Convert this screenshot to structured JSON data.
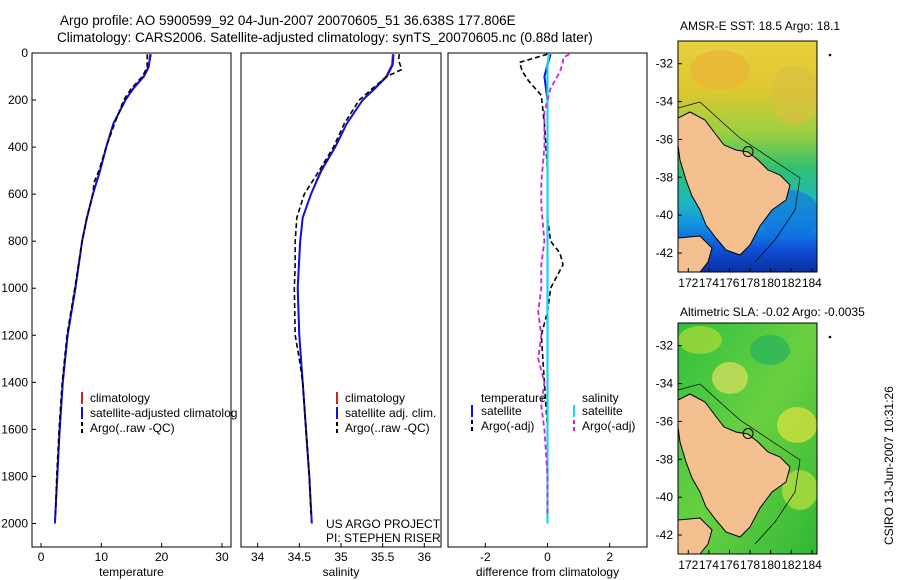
{
  "header": {
    "line1": "Argo profile: AO 5900599_92 04-Jun-2007 20070605_51 36.638S 177.806E",
    "line2": "Climatology: CARS2006. Satellite-adjusted climatology: synTS_20070605.nc (0.88d later)"
  },
  "colors": {
    "climatology": "#d42020",
    "satellite": "#1010e0",
    "argo": "#000000",
    "sat_salinity": "#20d0f0",
    "argo_salinity_adj": "#d020d0"
  },
  "chart_data": [
    {
      "type": "line",
      "name": "temperature-profile",
      "xlabel": "temperature",
      "ylabel": "",
      "xlim": [
        -1.5,
        31.5
      ],
      "ylim": [
        2100,
        0
      ],
      "y_inverted": true,
      "xticks": [
        0,
        10,
        20,
        30
      ],
      "yticks": [
        0,
        200,
        400,
        600,
        800,
        1000,
        1200,
        1400,
        1600,
        1800,
        2000
      ],
      "legend_entries": [
        "climatology",
        "satellite-adjusted climatolog",
        "Argo(..raw -QC)"
      ],
      "series": [
        {
          "name": "climatology",
          "depth": [
            5,
            60,
            100,
            150,
            200,
            300,
            400,
            500,
            600,
            700,
            800,
            1000,
            1200,
            1400,
            1600,
            1800,
            2000
          ],
          "values": [
            18.0,
            17.9,
            17.1,
            15.4,
            14.0,
            12.0,
            10.8,
            9.8,
            8.6,
            7.6,
            6.8,
            5.7,
            4.4,
            3.6,
            3.1,
            2.7,
            2.3
          ]
        },
        {
          "name": "satellite-adjusted",
          "depth": [
            5,
            60,
            100,
            150,
            200,
            300,
            400,
            500,
            600,
            700,
            800,
            1000,
            1200,
            1400,
            1600,
            1800,
            2000
          ],
          "values": [
            18.2,
            17.8,
            17.0,
            15.3,
            14.0,
            12.0,
            10.8,
            9.8,
            8.6,
            7.6,
            6.8,
            5.7,
            4.4,
            3.6,
            3.1,
            2.7,
            2.3
          ]
        },
        {
          "name": "argo",
          "depth": [
            5,
            60,
            100,
            150,
            200,
            300,
            400,
            500,
            550,
            600,
            700,
            800,
            1000,
            1200,
            1400,
            1600,
            1800,
            1960
          ],
          "values": [
            17.6,
            17.6,
            16.8,
            15.0,
            13.7,
            12.2,
            10.8,
            9.6,
            8.8,
            8.6,
            7.6,
            6.8,
            5.6,
            4.3,
            3.5,
            3.0,
            2.6,
            2.4
          ]
        }
      ]
    },
    {
      "type": "line",
      "name": "salinity-profile",
      "xlabel": "salinity",
      "xlim": [
        33.8,
        36.2
      ],
      "ylim": [
        2100,
        0
      ],
      "y_inverted": true,
      "xticks": [
        34,
        34.5,
        35,
        35.5,
        36
      ],
      "xtick_labels": [
        "34",
        "34.5",
        "35",
        "35.5",
        "36"
      ],
      "legend_entries": [
        "climatology",
        "satellite adj. clim.",
        "Argo(..raw -QC)"
      ],
      "annotations": [
        "US ARGO PROJECT",
        "PI: STEPHEN RISER"
      ],
      "series": [
        {
          "name": "climatology",
          "depth": [
            5,
            50,
            100,
            150,
            200,
            300,
            400,
            500,
            600,
            700,
            800,
            1000,
            1200,
            1400,
            1600,
            1800,
            2000
          ],
          "values": [
            35.62,
            35.61,
            35.54,
            35.4,
            35.26,
            35.07,
            34.93,
            34.77,
            34.64,
            34.54,
            34.51,
            34.48,
            34.5,
            34.54,
            34.58,
            34.62,
            34.65
          ]
        },
        {
          "name": "satellite-adjusted",
          "depth": [
            5,
            50,
            100,
            150,
            200,
            300,
            400,
            500,
            600,
            700,
            800,
            1000,
            1200,
            1400,
            1600,
            1800,
            2000
          ],
          "values": [
            35.63,
            35.62,
            35.55,
            35.41,
            35.26,
            35.07,
            34.93,
            34.76,
            34.64,
            34.54,
            34.51,
            34.48,
            34.5,
            34.54,
            34.58,
            34.62,
            34.65
          ]
        },
        {
          "name": "argo",
          "depth": [
            5,
            30,
            70,
            100,
            150,
            200,
            300,
            400,
            500,
            600,
            700,
            800,
            900,
            1000,
            1200,
            1300,
            1400,
            1600,
            1800,
            1960
          ],
          "values": [
            35.7,
            35.69,
            35.73,
            35.55,
            35.38,
            35.22,
            35.04,
            34.91,
            34.74,
            34.56,
            34.47,
            34.45,
            34.45,
            34.44,
            34.45,
            34.5,
            34.54,
            34.58,
            34.62,
            34.64
          ]
        }
      ]
    },
    {
      "type": "line",
      "name": "difference-from-climatology",
      "xlabel": "difference from climatology",
      "xlim": [
        -3.2,
        3.2
      ],
      "ylim": [
        2100,
        0
      ],
      "y_inverted": true,
      "xticks": [
        -2,
        0,
        2
      ],
      "legend_entries": [
        "temperature",
        "satellite",
        "Argo(-adj)",
        "salinity",
        "satellite",
        "Argo(-adj)"
      ],
      "series": [
        {
          "name": "temperature satellite",
          "depth": [
            5,
            50,
            100,
            200,
            2000
          ],
          "values": [
            0.1,
            0.0,
            -0.1,
            0.0,
            0.0
          ]
        },
        {
          "name": "temperature Argo(-adj)",
          "depth": [
            5,
            40,
            80,
            120,
            180,
            300,
            500,
            700,
            800,
            850,
            900,
            950,
            1000,
            1100,
            1200,
            1400,
            1600,
            1800,
            1960
          ],
          "values": [
            0.0,
            -0.9,
            -0.8,
            -0.6,
            -0.2,
            -0.1,
            0.0,
            0.0,
            0.1,
            0.4,
            0.5,
            0.3,
            0.1,
            0.0,
            -0.2,
            -0.1,
            0.0,
            0.0,
            0.0
          ]
        },
        {
          "name": "salinity satellite",
          "depth": [
            5,
            50,
            100,
            300,
            2000
          ],
          "values": [
            0.05,
            0.0,
            0.0,
            0.0,
            0.0
          ]
        },
        {
          "name": "salinity Argo(-adj)",
          "depth": [
            5,
            20,
            40,
            80,
            150,
            250,
            400,
            550,
            650,
            800,
            900,
            1000,
            1100,
            1200,
            1300,
            1400,
            1500,
            1600,
            1800,
            1960
          ],
          "values": [
            0.7,
            0.5,
            0.5,
            0.4,
            0.1,
            -0.1,
            -0.1,
            -0.2,
            -0.2,
            -0.1,
            -0.2,
            -0.2,
            -0.3,
            -0.2,
            -0.3,
            -0.1,
            -0.2,
            -0.1,
            0.0,
            0.0
          ]
        }
      ]
    },
    {
      "type": "heatmap",
      "name": "amsr-e-sst-map",
      "title": "AMSR-E SST: 18.5 Argo: 18.1",
      "xlim": [
        171,
        184.5
      ],
      "ylim": [
        -43,
        -30.8
      ],
      "xticks": [
        172,
        174,
        176,
        178,
        180,
        182,
        184
      ],
      "yticks": [
        -32,
        -34,
        -36,
        -38,
        -40,
        -42
      ],
      "argo_marker": {
        "lon": 177.806,
        "lat": -36.638
      }
    },
    {
      "type": "heatmap",
      "name": "altimetric-sla-map",
      "title": "Altimetric SLA: -0.02 Argo: -0.0035",
      "xlim": [
        171,
        184.5
      ],
      "ylim": [
        -43,
        -30.8
      ],
      "xticks": [
        172,
        174,
        176,
        178,
        180,
        182,
        184
      ],
      "yticks": [
        -32,
        -34,
        -36,
        -38,
        -40,
        -42
      ],
      "argo_marker": {
        "lon": 177.806,
        "lat": -36.638
      }
    }
  ],
  "side_label": "CSIRO 13-Jun-2007 10:31:26"
}
